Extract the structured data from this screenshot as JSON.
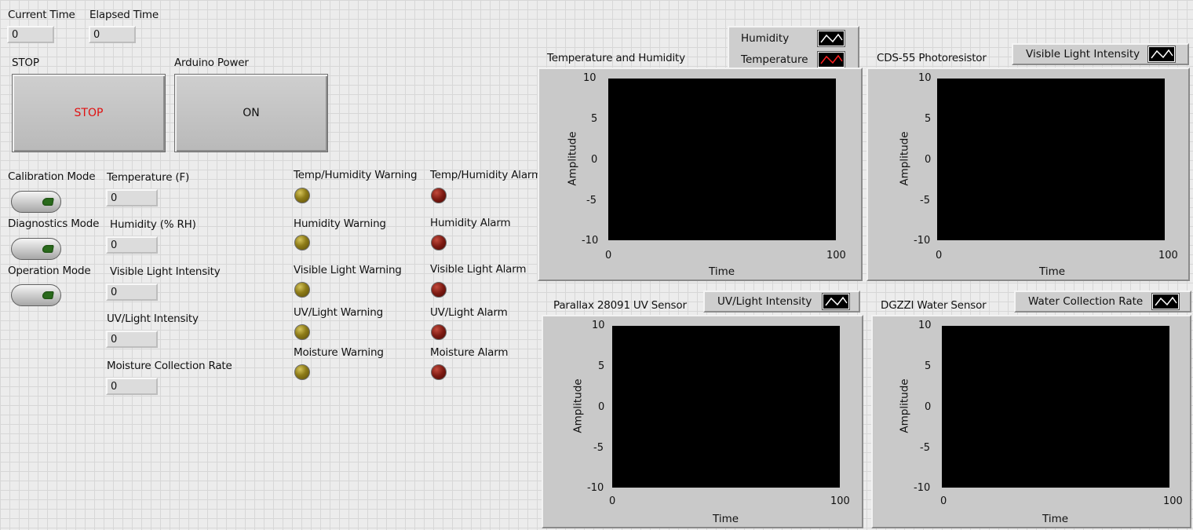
{
  "time": {
    "current_label": "Current Time",
    "current_value": "0",
    "elapsed_label": "Elapsed Time",
    "elapsed_value": "0"
  },
  "buttons": {
    "stop_label": "STOP",
    "stop_text": "STOP",
    "power_label": "Arduino Power",
    "power_text": "ON",
    "stop_text_color": "#e01010"
  },
  "modes": [
    {
      "label": "Calibration Mode",
      "icon": "toggle-switch-icon"
    },
    {
      "label": "Diagnostics Mode",
      "icon": "toggle-switch-icon"
    },
    {
      "label": "Operation Mode",
      "icon": "toggle-switch-icon"
    }
  ],
  "readings": [
    {
      "label": "Temperature (F)",
      "value": "0"
    },
    {
      "label": "Humidity (% RH)",
      "value": "0"
    },
    {
      "label": "Visible Light Intensity",
      "value": "0"
    },
    {
      "label": "UV/Light Intensity",
      "value": "0"
    },
    {
      "label": "Moisture Collection Rate",
      "value": "0"
    }
  ],
  "warnings": [
    {
      "label": "Temp/Humidity Warning"
    },
    {
      "label": "Humidity Warning"
    },
    {
      "label": "Visible Light Warning"
    },
    {
      "label": "UV/Light Warning"
    },
    {
      "label": "Moisture Warning"
    }
  ],
  "alarms": [
    {
      "label": "Temp/Humidity Alarm"
    },
    {
      "label": "Humidity Alarm"
    },
    {
      "label": "Visible Light Alarm"
    },
    {
      "label": "UV/Light Alarm"
    },
    {
      "label": "Moisture Alarm"
    }
  ],
  "colors": {
    "warning_led": "#8d7b18",
    "alarm_led": "#7c1a12",
    "plot_background": "#000000",
    "temperature_trace": "#ff2020",
    "default_trace": "#ffffff"
  },
  "graphs": {
    "temp_humidity": {
      "title": "Temperature and Humidity",
      "legend": [
        {
          "name": "Humidity",
          "color": "#ffffff"
        },
        {
          "name": "Temperature",
          "color": "#ff2020"
        }
      ],
      "y_title": "Amplitude",
      "x_title": "Time",
      "y_ticks": [
        "10",
        "5",
        "0",
        "-5",
        "-10"
      ],
      "x_ticks": [
        "0",
        "100"
      ]
    },
    "photoresistor": {
      "title": "CDS-55 Photoresistor",
      "legend": [
        {
          "name": "Visible Light Intensity",
          "color": "#ffffff"
        }
      ],
      "y_title": "Amplitude",
      "x_title": "Time",
      "y_ticks": [
        "10",
        "5",
        "0",
        "-5",
        "-10"
      ],
      "x_ticks": [
        "0",
        "100"
      ]
    },
    "uv_sensor": {
      "title": "Parallax 28091 UV Sensor",
      "legend": [
        {
          "name": "UV/Light Intensity",
          "color": "#ffffff"
        }
      ],
      "y_title": "Amplitude",
      "x_title": "Time",
      "y_ticks": [
        "10",
        "5",
        "0",
        "-5",
        "-10"
      ],
      "x_ticks": [
        "0",
        "100"
      ]
    },
    "water_sensor": {
      "title": "DGZZI Water Sensor",
      "legend": [
        {
          "name": "Water Collection Rate",
          "color": "#ffffff"
        }
      ],
      "y_title": "Amplitude",
      "x_title": "Time",
      "y_ticks": [
        "10",
        "5",
        "0",
        "-5",
        "-10"
      ],
      "x_ticks": [
        "0",
        "100"
      ]
    }
  }
}
